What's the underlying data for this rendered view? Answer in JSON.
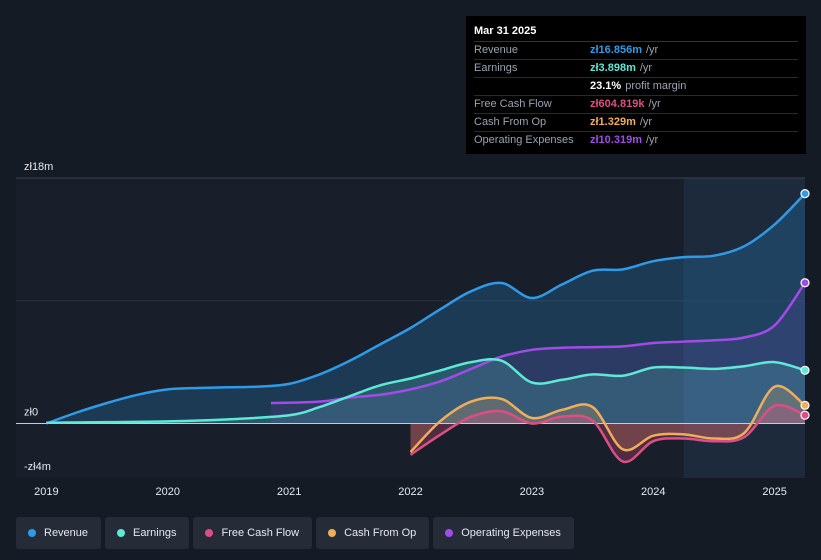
{
  "tooltip": {
    "date": "Mar 31 2025",
    "rows": [
      {
        "label": "Revenue",
        "value": "zł16.856m",
        "unit": "/yr",
        "color": "#2f9be8"
      },
      {
        "label": "Earnings",
        "value": "zł3.898m",
        "unit": "/yr",
        "color": "#5ee8d5"
      },
      {
        "label": "",
        "value": "23.1%",
        "unit": "profit margin",
        "color": "#ffffff"
      },
      {
        "label": "Free Cash Flow",
        "value": "zł604.819k",
        "unit": "/yr",
        "color": "#dd4f84"
      },
      {
        "label": "Cash From Op",
        "value": "zł1.329m",
        "unit": "/yr",
        "color": "#f0ae5a"
      },
      {
        "label": "Operating Expenses",
        "value": "zł10.319m",
        "unit": "/yr",
        "color": "#a24be8"
      }
    ]
  },
  "legend": [
    {
      "label": "Revenue",
      "color": "#2f9be8"
    },
    {
      "label": "Earnings",
      "color": "#5ee8d5"
    },
    {
      "label": "Free Cash Flow",
      "color": "#dd4f84"
    },
    {
      "label": "Cash From Op",
      "color": "#f0ae5a"
    },
    {
      "label": "Operating Expenses",
      "color": "#a24be8"
    }
  ],
  "chart_data": {
    "type": "area",
    "title": "",
    "ylim": [
      -4,
      18
    ],
    "y_tick_labels": [
      {
        "value": 18,
        "label": "zł18m"
      },
      {
        "value": 0,
        "label": "zł0"
      },
      {
        "value": -4,
        "label": "-zł4m"
      }
    ],
    "x_tick_labels": [
      {
        "value": 2019,
        "label": "2019"
      },
      {
        "value": 2020,
        "label": "2020"
      },
      {
        "value": 2021,
        "label": "2021"
      },
      {
        "value": 2022,
        "label": "2022"
      },
      {
        "value": 2023,
        "label": "2023"
      },
      {
        "value": 2024,
        "label": "2024"
      },
      {
        "value": 2025,
        "label": "2025"
      }
    ],
    "xlim": [
      2018.75,
      2025.25
    ],
    "forecast_start": 2024.25,
    "series": [
      {
        "name": "Revenue",
        "color": "#2f9be8",
        "points": [
          [
            2019.0,
            0.0
          ],
          [
            2019.25,
            0.8
          ],
          [
            2019.5,
            1.5
          ],
          [
            2019.75,
            2.1
          ],
          [
            2020.0,
            2.5
          ],
          [
            2020.25,
            2.6
          ],
          [
            2020.5,
            2.65
          ],
          [
            2020.75,
            2.7
          ],
          [
            2021.0,
            2.9
          ],
          [
            2021.25,
            3.6
          ],
          [
            2021.5,
            4.6
          ],
          [
            2021.75,
            5.8
          ],
          [
            2022.0,
            7.0
          ],
          [
            2022.25,
            8.4
          ],
          [
            2022.5,
            9.7
          ],
          [
            2022.75,
            10.3
          ],
          [
            2023.0,
            9.2
          ],
          [
            2023.25,
            10.2
          ],
          [
            2023.5,
            11.2
          ],
          [
            2023.75,
            11.3
          ],
          [
            2024.0,
            11.9
          ],
          [
            2024.25,
            12.2
          ],
          [
            2024.5,
            12.3
          ],
          [
            2024.75,
            13.0
          ],
          [
            2025.0,
            14.6
          ],
          [
            2025.25,
            16.856
          ]
        ]
      },
      {
        "name": "Earnings",
        "color": "#5ee8d5",
        "points": [
          [
            2019.0,
            0.05
          ],
          [
            2019.5,
            0.1
          ],
          [
            2020.0,
            0.15
          ],
          [
            2020.5,
            0.3
          ],
          [
            2021.0,
            0.6
          ],
          [
            2021.25,
            1.2
          ],
          [
            2021.5,
            2.0
          ],
          [
            2021.75,
            2.8
          ],
          [
            2022.0,
            3.3
          ],
          [
            2022.25,
            3.9
          ],
          [
            2022.5,
            4.5
          ],
          [
            2022.75,
            4.6
          ],
          [
            2023.0,
            3.0
          ],
          [
            2023.25,
            3.2
          ],
          [
            2023.5,
            3.6
          ],
          [
            2023.75,
            3.5
          ],
          [
            2024.0,
            4.1
          ],
          [
            2024.25,
            4.1
          ],
          [
            2024.5,
            4.0
          ],
          [
            2024.75,
            4.2
          ],
          [
            2025.0,
            4.5
          ],
          [
            2025.25,
            3.898
          ]
        ]
      },
      {
        "name": "Free Cash Flow",
        "color": "#dd4f84",
        "points": [
          [
            2022.0,
            -2.3
          ],
          [
            2022.25,
            -0.8
          ],
          [
            2022.5,
            0.5
          ],
          [
            2022.75,
            0.9
          ],
          [
            2023.0,
            0.0
          ],
          [
            2023.25,
            0.5
          ],
          [
            2023.5,
            0.2
          ],
          [
            2023.75,
            -2.8
          ],
          [
            2024.0,
            -1.3
          ],
          [
            2024.25,
            -1.1
          ],
          [
            2024.5,
            -1.3
          ],
          [
            2024.75,
            -1.0
          ],
          [
            2025.0,
            1.3
          ],
          [
            2025.25,
            0.604819
          ]
        ]
      },
      {
        "name": "Cash From Op",
        "color": "#f0ae5a",
        "points": [
          [
            2022.0,
            -2.1
          ],
          [
            2022.25,
            0.2
          ],
          [
            2022.5,
            1.6
          ],
          [
            2022.75,
            1.8
          ],
          [
            2023.0,
            0.4
          ],
          [
            2023.25,
            1.0
          ],
          [
            2023.5,
            1.2
          ],
          [
            2023.75,
            -1.9
          ],
          [
            2024.0,
            -0.9
          ],
          [
            2024.25,
            -0.8
          ],
          [
            2024.5,
            -1.1
          ],
          [
            2024.75,
            -0.7
          ],
          [
            2025.0,
            2.7
          ],
          [
            2025.25,
            1.329
          ]
        ]
      },
      {
        "name": "Operating Expenses",
        "color": "#a24be8",
        "points": [
          [
            2020.85,
            1.5
          ],
          [
            2021.25,
            1.6
          ],
          [
            2021.5,
            1.9
          ],
          [
            2021.75,
            2.1
          ],
          [
            2022.0,
            2.5
          ],
          [
            2022.25,
            3.1
          ],
          [
            2022.5,
            4.0
          ],
          [
            2022.75,
            4.9
          ],
          [
            2023.0,
            5.4
          ],
          [
            2023.25,
            5.55
          ],
          [
            2023.5,
            5.6
          ],
          [
            2023.75,
            5.65
          ],
          [
            2024.0,
            5.9
          ],
          [
            2024.25,
            6.0
          ],
          [
            2024.5,
            6.1
          ],
          [
            2024.75,
            6.3
          ],
          [
            2025.0,
            7.2
          ],
          [
            2025.25,
            10.319
          ]
        ]
      }
    ]
  }
}
